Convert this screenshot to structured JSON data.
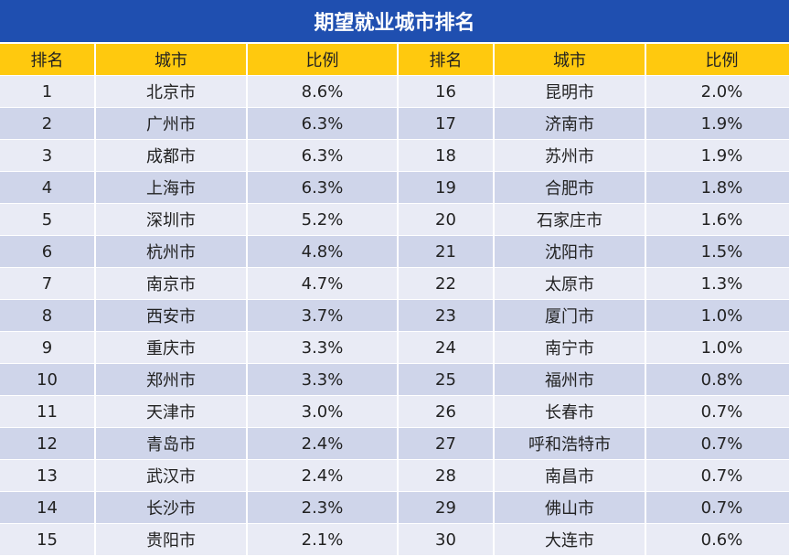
{
  "title": "期望就业城市排名",
  "headers": [
    "排名",
    "城市",
    "比例",
    "排名",
    "城市",
    "比例"
  ],
  "rows": [
    [
      "1",
      "北京市",
      "8.6%",
      "16",
      "昆明市",
      "2.0%"
    ],
    [
      "2",
      "广州市",
      "6.3%",
      "17",
      "济南市",
      "1.9%"
    ],
    [
      "3",
      "成都市",
      "6.3%",
      "18",
      "苏州市",
      "1.9%"
    ],
    [
      "4",
      "上海市",
      "6.3%",
      "19",
      "合肥市",
      "1.8%"
    ],
    [
      "5",
      "深圳市",
      "5.2%",
      "20",
      "石家庄市",
      "1.6%"
    ],
    [
      "6",
      "杭州市",
      "4.8%",
      "21",
      "沈阳市",
      "1.5%"
    ],
    [
      "7",
      "南京市",
      "4.7%",
      "22",
      "太原市",
      "1.3%"
    ],
    [
      "8",
      "西安市",
      "3.7%",
      "23",
      "厦门市",
      "1.0%"
    ],
    [
      "9",
      "重庆市",
      "3.3%",
      "24",
      "南宁市",
      "1.0%"
    ],
    [
      "10",
      "郑州市",
      "3.3%",
      "25",
      "福州市",
      "0.8%"
    ],
    [
      "11",
      "天津市",
      "3.0%",
      "26",
      "长春市",
      "0.7%"
    ],
    [
      "12",
      "青岛市",
      "2.4%",
      "27",
      "呼和浩特市",
      "0.7%"
    ],
    [
      "13",
      "武汉市",
      "2.4%",
      "28",
      "南昌市",
      "0.7%"
    ],
    [
      "14",
      "长沙市",
      "2.3%",
      "29",
      "佛山市",
      "0.7%"
    ],
    [
      "15",
      "贵阳市",
      "2.1%",
      "30",
      "大连市",
      "0.6%"
    ]
  ],
  "colors": {
    "title_bg": "#1f4fb0",
    "header_bg": "#ffc90e",
    "row_light": "#e9ebf5",
    "row_dark": "#cfd5ea"
  }
}
